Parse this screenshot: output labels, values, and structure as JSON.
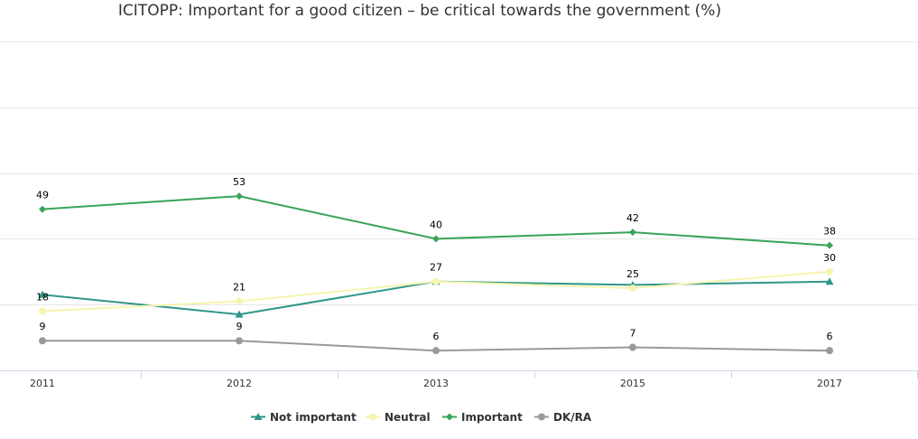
{
  "chart_data": {
    "type": "line",
    "title": "ICITOPP: Important for a good citizen – be critical towards the government (%)",
    "x": [
      "2011",
      "2012",
      "2013",
      "2015",
      "2017"
    ],
    "ylim": [
      0,
      100
    ],
    "grid": true,
    "legend_position": "bottom-center",
    "series": [
      {
        "name": "Not important",
        "color": "#2e9688",
        "marker": "triangle",
        "values": [
          23,
          17,
          27,
          26,
          27
        ],
        "show_labels": false
      },
      {
        "name": "Neutral",
        "color": "#f5f5b0",
        "marker": "circle",
        "values": [
          18,
          21,
          27,
          25,
          30
        ],
        "show_labels": true
      },
      {
        "name": "Important",
        "color": "#3aa35a",
        "marker": "diamond",
        "values": [
          49,
          53,
          40,
          42,
          38
        ],
        "show_labels": true
      },
      {
        "name": "DK/RA",
        "color": "#999999",
        "marker": "circle",
        "values": [
          9,
          9,
          6,
          7,
          6
        ],
        "show_labels": true
      }
    ]
  }
}
